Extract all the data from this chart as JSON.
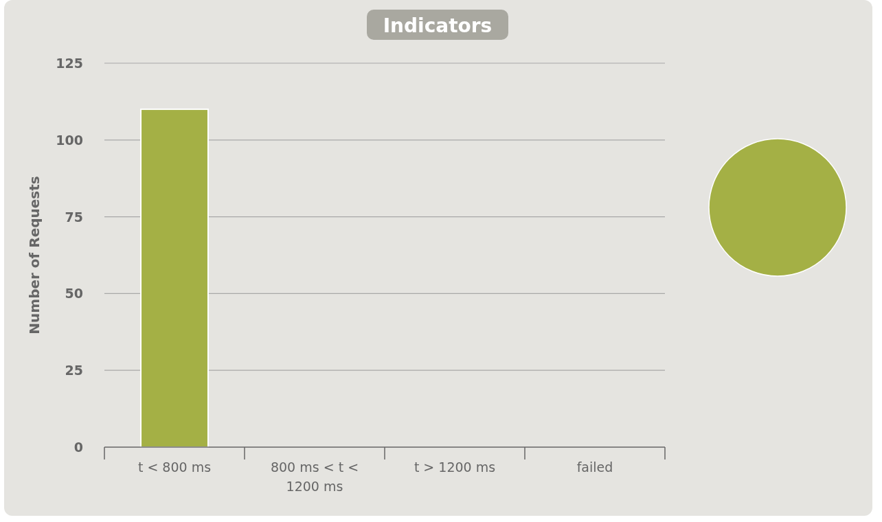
{
  "chart_data": [
    {
      "type": "bar",
      "title": "Indicators",
      "ylabel": "Number of Requests",
      "categories": [
        "t < 800 ms",
        "800 ms < t < 1200 ms",
        "t > 1200 ms",
        "failed"
      ],
      "values": [
        110,
        0,
        0,
        0
      ],
      "color": "#a4b045",
      "ylim": [
        0,
        125
      ],
      "yticks": [
        0,
        25,
        50,
        75,
        100,
        125
      ],
      "grid": "y"
    },
    {
      "type": "pie",
      "categories": [
        null
      ],
      "values": [
        100
      ],
      "colors": [
        "#a4b045"
      ]
    }
  ]
}
